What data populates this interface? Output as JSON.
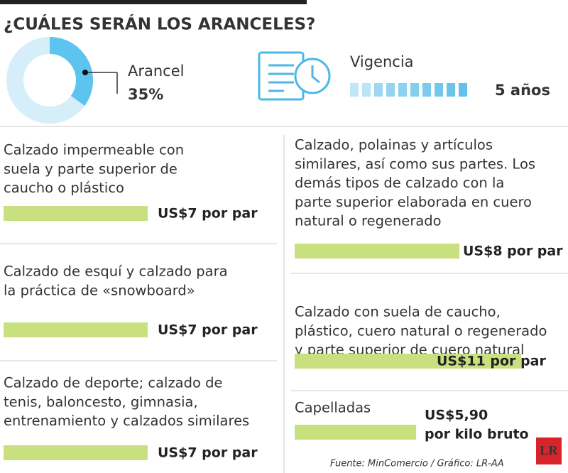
{
  "title": "¿CUÁLES SERÁN LOS ARANCELES?",
  "arancel": {
    "label": "Arancel",
    "value": 35,
    "value_label": "35%"
  },
  "vigencia": {
    "label": "Vigencia",
    "value_label": "5 años"
  },
  "items": [
    {
      "description": [
        "Calzado impermeable con",
        "suela y parte superior de",
        "caucho o plástico"
      ],
      "value": 7,
      "value_label": [
        "US$7 por par"
      ]
    },
    {
      "description": [
        "Calzado de esquí y calzado para",
        "la práctica de «snowboard»"
      ],
      "value": 7,
      "value_label": [
        "US$7 por par"
      ]
    },
    {
      "description": [
        "Calzado de deporte; calzado de",
        "tenis, baloncesto, gimnasia,",
        "entrenamiento y calzados similares"
      ],
      "value": 7,
      "value_label": [
        "US$7 por par"
      ]
    },
    {
      "description": [
        "Calzado, polainas y artículos",
        "similares, así como sus partes. Los",
        "demás tipos de calzado con la",
        "parte superior elaborada en cuero",
        "natural o regenerado"
      ],
      "value": 8,
      "value_label": [
        "US$8 por par"
      ]
    },
    {
      "description": [
        "Calzado con suela de caucho,",
        "plástico, cuero natural o regenerado",
        "y parte superior de cuero natural"
      ],
      "value": 11,
      "value_label": [
        "US$11 por par"
      ]
    },
    {
      "description": [
        "Capelladas"
      ],
      "value": 5.9,
      "value_label": [
        "US$5,90",
        "por kilo bruto"
      ]
    }
  ],
  "source": "Fuente: MinComercio / Gráfico: LR-AA",
  "logo": "LR"
}
